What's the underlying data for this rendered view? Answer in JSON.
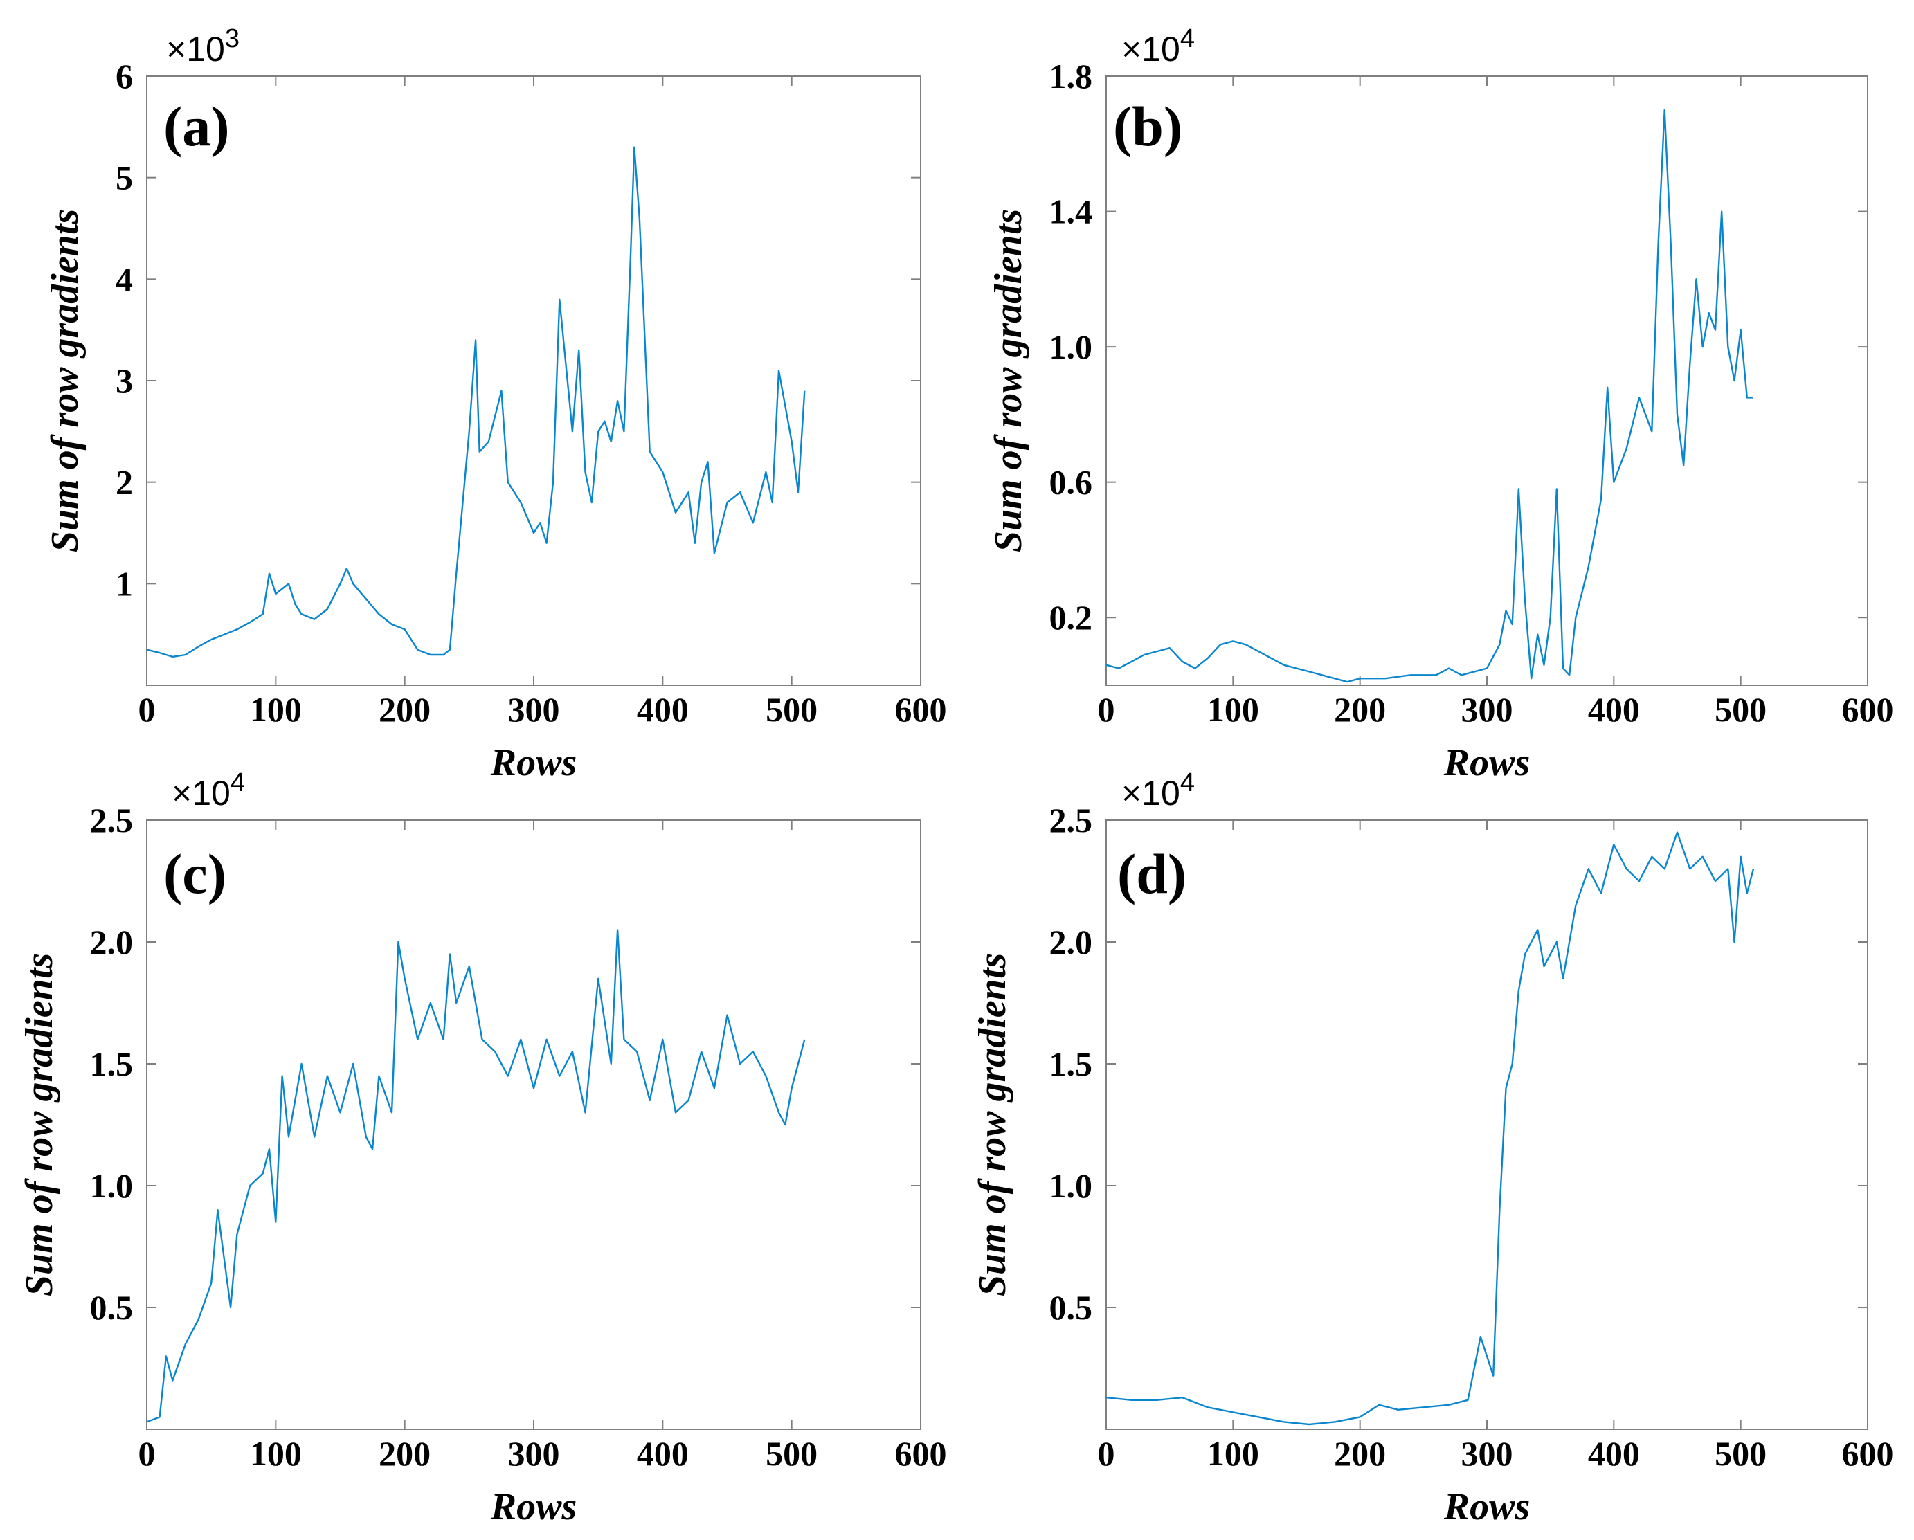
{
  "figure_title": "",
  "chart_data": [
    {
      "id": "a",
      "type": "line",
      "panel_label": "(a)",
      "xlabel": "Rows",
      "ylabel": "Sum of row gradients",
      "exponent": {
        "base": "×10",
        "power": "3"
      },
      "xlim": [
        0,
        600
      ],
      "ylim": [
        0,
        6
      ],
      "xticks": [
        0,
        100,
        200,
        300,
        400,
        500,
        600
      ],
      "xtick_labels": [
        "0",
        "100",
        "200",
        "300",
        "400",
        "500",
        "600"
      ],
      "yticks": [
        1,
        2,
        3,
        4,
        5,
        6
      ],
      "ytick_labels": [
        "1",
        "2",
        "3",
        "4",
        "5",
        "6"
      ],
      "series": [
        {
          "name": "Sum of row gradients",
          "color": "#0a86cf",
          "x": [
            0,
            10,
            20,
            30,
            40,
            50,
            60,
            70,
            80,
            90,
            95,
            100,
            110,
            115,
            120,
            130,
            140,
            150,
            155,
            160,
            170,
            180,
            190,
            200,
            210,
            220,
            230,
            235,
            240,
            245,
            250,
            255,
            258,
            265,
            275,
            280,
            290,
            300,
            305,
            310,
            315,
            320,
            330,
            335,
            340,
            345,
            350,
            355,
            360,
            365,
            370,
            375,
            378,
            382,
            390,
            400,
            410,
            420,
            425,
            430,
            435,
            440,
            450,
            460,
            470,
            480,
            485,
            490,
            500,
            505,
            510
          ],
          "y": [
            0.35,
            0.32,
            0.28,
            0.3,
            0.38,
            0.45,
            0.5,
            0.55,
            0.62,
            0.7,
            1.1,
            0.9,
            1.0,
            0.8,
            0.7,
            0.65,
            0.75,
            1.0,
            1.15,
            1.0,
            0.85,
            0.7,
            0.6,
            0.55,
            0.35,
            0.3,
            0.3,
            0.35,
            1.1,
            1.8,
            2.5,
            3.4,
            2.3,
            2.4,
            2.9,
            2.0,
            1.8,
            1.5,
            1.6,
            1.4,
            2.0,
            3.8,
            2.5,
            3.3,
            2.1,
            1.8,
            2.5,
            2.6,
            2.4,
            2.8,
            2.5,
            4.2,
            5.3,
            4.6,
            2.3,
            2.1,
            1.7,
            1.9,
            1.4,
            2.0,
            2.2,
            1.3,
            1.8,
            1.9,
            1.6,
            2.1,
            1.8,
            3.1,
            2.4,
            1.9,
            2.9
          ]
        }
      ]
    },
    {
      "id": "b",
      "type": "line",
      "panel_label": "(b)",
      "xlabel": "Rows",
      "ylabel": "Sum of row gradients",
      "exponent": {
        "base": "×10",
        "power": "4"
      },
      "xlim": [
        0,
        600
      ],
      "ylim": [
        0,
        1.8
      ],
      "xticks": [
        0,
        100,
        200,
        300,
        400,
        500,
        600
      ],
      "xtick_labels": [
        "0",
        "100",
        "200",
        "300",
        "400",
        "500",
        "600"
      ],
      "yticks": [
        0.2,
        0.6,
        1.0,
        1.4,
        1.8
      ],
      "ytick_labels": [
        "0.2",
        "0.6",
        "1.0",
        "1.4",
        "1.8"
      ],
      "series": [
        {
          "name": "Sum of row gradients",
          "color": "#0a86cf",
          "x": [
            0,
            10,
            20,
            30,
            40,
            50,
            60,
            70,
            80,
            90,
            100,
            110,
            120,
            130,
            140,
            150,
            160,
            170,
            180,
            190,
            200,
            220,
            240,
            260,
            270,
            280,
            300,
            310,
            315,
            320,
            325,
            330,
            335,
            340,
            345,
            350,
            355,
            360,
            365,
            370,
            380,
            390,
            395,
            400,
            410,
            420,
            430,
            435,
            440,
            445,
            450,
            455,
            460,
            465,
            470,
            475,
            480,
            485,
            490,
            495,
            500,
            505,
            510
          ],
          "y": [
            0.06,
            0.05,
            0.07,
            0.09,
            0.1,
            0.11,
            0.07,
            0.05,
            0.08,
            0.12,
            0.13,
            0.12,
            0.1,
            0.08,
            0.06,
            0.05,
            0.04,
            0.03,
            0.02,
            0.01,
            0.02,
            0.02,
            0.03,
            0.03,
            0.05,
            0.03,
            0.05,
            0.12,
            0.22,
            0.18,
            0.58,
            0.25,
            0.02,
            0.15,
            0.06,
            0.2,
            0.58,
            0.05,
            0.03,
            0.2,
            0.35,
            0.55,
            0.88,
            0.6,
            0.7,
            0.85,
            0.75,
            1.3,
            1.7,
            1.3,
            0.8,
            0.65,
            0.95,
            1.2,
            1.0,
            1.1,
            1.05,
            1.4,
            1.0,
            0.9,
            1.05,
            0.85,
            0.85
          ]
        }
      ]
    },
    {
      "id": "c",
      "type": "line",
      "panel_label": "(c)",
      "xlabel": "Rows",
      "ylabel": "Sum of row gradients",
      "exponent": {
        "base": "×10",
        "power": "4"
      },
      "xlim": [
        0,
        600
      ],
      "ylim": [
        0,
        2.5
      ],
      "xticks": [
        0,
        100,
        200,
        300,
        400,
        500,
        600
      ],
      "xtick_labels": [
        "0",
        "100",
        "200",
        "300",
        "400",
        "500",
        "600"
      ],
      "yticks": [
        0.5,
        1.0,
        1.5,
        2.0,
        2.5
      ],
      "ytick_labels": [
        "0.5",
        "1.0",
        "1.5",
        "2.0",
        "2.5"
      ],
      "series": [
        {
          "name": "Sum of row gradients",
          "color": "#0a86cf",
          "x": [
            0,
            10,
            15,
            20,
            30,
            40,
            50,
            55,
            60,
            65,
            70,
            80,
            90,
            95,
            100,
            105,
            110,
            120,
            125,
            130,
            140,
            150,
            160,
            170,
            175,
            180,
            190,
            195,
            200,
            210,
            220,
            230,
            235,
            240,
            250,
            260,
            270,
            280,
            290,
            300,
            310,
            320,
            330,
            340,
            350,
            360,
            365,
            370,
            380,
            390,
            400,
            410,
            420,
            430,
            440,
            450,
            460,
            470,
            480,
            490,
            495,
            500,
            510
          ],
          "y": [
            0.03,
            0.05,
            0.3,
            0.2,
            0.35,
            0.45,
            0.6,
            0.9,
            0.7,
            0.5,
            0.8,
            1.0,
            1.05,
            1.15,
            0.85,
            1.45,
            1.2,
            1.5,
            1.35,
            1.2,
            1.45,
            1.3,
            1.5,
            1.2,
            1.15,
            1.45,
            1.3,
            2.0,
            1.85,
            1.6,
            1.75,
            1.6,
            1.95,
            1.75,
            1.9,
            1.6,
            1.55,
            1.45,
            1.6,
            1.4,
            1.6,
            1.45,
            1.55,
            1.3,
            1.85,
            1.5,
            2.05,
            1.6,
            1.55,
            1.35,
            1.6,
            1.3,
            1.35,
            1.55,
            1.4,
            1.7,
            1.5,
            1.55,
            1.45,
            1.3,
            1.25,
            1.4,
            1.6
          ]
        }
      ]
    },
    {
      "id": "d",
      "type": "line",
      "panel_label": "(d)",
      "xlabel": "Rows",
      "ylabel": "Sum of row gradients",
      "exponent": {
        "base": "×10",
        "power": "4"
      },
      "xlim": [
        0,
        600
      ],
      "ylim": [
        0,
        2.5
      ],
      "xticks": [
        0,
        100,
        200,
        300,
        400,
        500,
        600
      ],
      "xtick_labels": [
        "0",
        "100",
        "200",
        "300",
        "400",
        "500",
        "600"
      ],
      "yticks": [
        0.5,
        1.0,
        1.5,
        2.0,
        2.5
      ],
      "ytick_labels": [
        "0.5",
        "1.0",
        "1.5",
        "2.0",
        "2.5"
      ],
      "series": [
        {
          "name": "Sum of row gradients",
          "color": "#0a86cf",
          "x": [
            0,
            20,
            40,
            60,
            70,
            80,
            100,
            120,
            140,
            160,
            180,
            200,
            215,
            230,
            250,
            270,
            285,
            290,
            295,
            300,
            305,
            310,
            315,
            320,
            325,
            330,
            340,
            345,
            350,
            355,
            360,
            370,
            380,
            390,
            400,
            410,
            420,
            430,
            440,
            450,
            460,
            470,
            480,
            490,
            495,
            500,
            505,
            510
          ],
          "y": [
            0.13,
            0.12,
            0.12,
            0.13,
            0.11,
            0.09,
            0.07,
            0.05,
            0.03,
            0.02,
            0.03,
            0.05,
            0.1,
            0.08,
            0.09,
            0.1,
            0.12,
            0.25,
            0.38,
            0.3,
            0.22,
            0.9,
            1.4,
            1.5,
            1.8,
            1.95,
            2.05,
            1.9,
            1.95,
            2.0,
            1.85,
            2.15,
            2.3,
            2.2,
            2.4,
            2.3,
            2.25,
            2.35,
            2.3,
            2.45,
            2.3,
            2.35,
            2.25,
            2.3,
            2.0,
            2.35,
            2.2,
            2.3
          ]
        }
      ]
    }
  ]
}
